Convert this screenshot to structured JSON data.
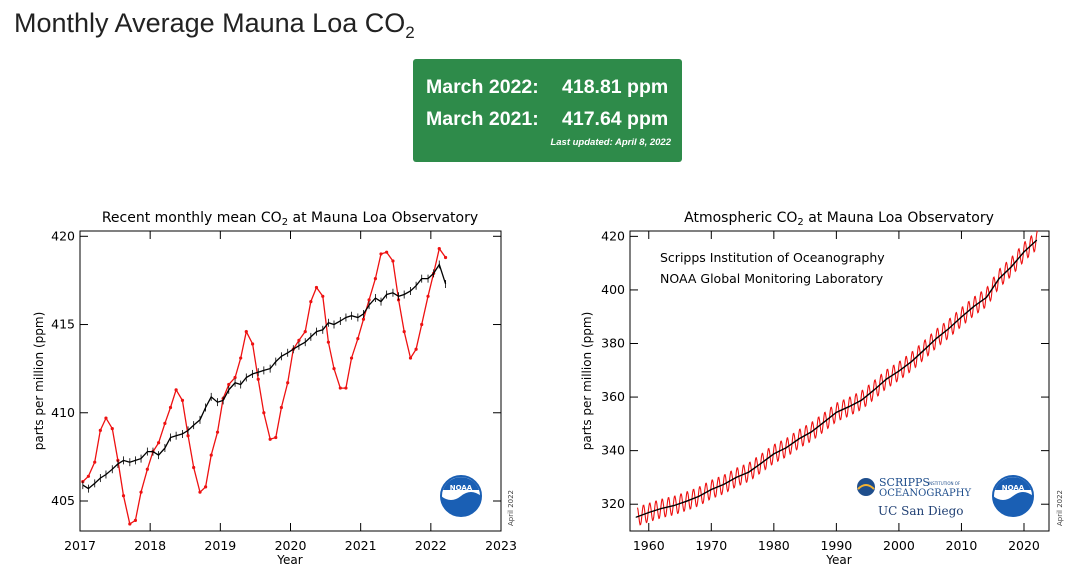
{
  "page": {
    "title": "Monthly Average Mauna Loa CO",
    "title_sub": "2"
  },
  "stats": {
    "row1_label": "March 2022:",
    "row1_value": "418.81 ppm",
    "row2_label": "March 2021:",
    "row2_value": "417.64 ppm",
    "updated": "Last updated: April 8, 2022"
  },
  "colors": {
    "stat_bg": "#2e8b4a",
    "monthly": "#ee1111",
    "trend": "#000000",
    "noaa_blue": "#1a5fb4"
  },
  "logos": {
    "noaa": "NOAA",
    "scripps_line1": "SCRIPPS",
    "scripps_line1_small": "INSTITUTION OF",
    "scripps_line2": "OCEANOGRAPHY",
    "ucsd": "UC San Diego",
    "date_stamp": "April 2022"
  },
  "chart_data": [
    {
      "type": "line",
      "title": "Recent monthly mean CO",
      "title_sub": "2",
      "title_suffix": " at Mauna Loa Observatory",
      "xlabel": "Year",
      "ylabel": "parts per million (ppm)",
      "xlim": [
        2017,
        2023
      ],
      "ylim": [
        403.3,
        420.3
      ],
      "xticks": [
        2017,
        2018,
        2019,
        2020,
        2021,
        2022,
        2023
      ],
      "yticks": [
        405,
        410,
        415,
        420
      ],
      "series": [
        {
          "name": "monthly mean",
          "color": "#ee1111",
          "x": [
            2017.04,
            2017.12,
            2017.21,
            2017.29,
            2017.37,
            2017.46,
            2017.54,
            2017.62,
            2017.71,
            2017.79,
            2017.87,
            2017.96,
            2018.04,
            2018.12,
            2018.21,
            2018.29,
            2018.37,
            2018.46,
            2018.54,
            2018.62,
            2018.71,
            2018.79,
            2018.87,
            2018.96,
            2019.04,
            2019.12,
            2019.21,
            2019.29,
            2019.37,
            2019.46,
            2019.54,
            2019.62,
            2019.71,
            2019.79,
            2019.87,
            2019.96,
            2020.04,
            2020.12,
            2020.21,
            2020.29,
            2020.37,
            2020.46,
            2020.54,
            2020.62,
            2020.71,
            2020.79,
            2020.87,
            2020.96,
            2021.04,
            2021.12,
            2021.21,
            2021.29,
            2021.37,
            2021.46,
            2021.54,
            2021.62,
            2021.71,
            2021.79,
            2021.87,
            2021.96,
            2022.04,
            2022.12,
            2022.21
          ],
          "values": [
            406.1,
            406.4,
            407.2,
            409.0,
            409.7,
            409.1,
            407.3,
            405.3,
            403.7,
            403.9,
            405.5,
            406.8,
            407.8,
            408.3,
            409.4,
            410.3,
            411.3,
            410.7,
            408.7,
            406.9,
            405.5,
            405.8,
            407.6,
            408.9,
            410.8,
            411.6,
            412.0,
            413.1,
            414.6,
            413.9,
            411.9,
            410.0,
            408.5,
            408.6,
            410.3,
            411.7,
            413.6,
            414.1,
            414.6,
            416.3,
            417.1,
            416.6,
            414.0,
            412.5,
            411.4,
            411.4,
            413.1,
            414.2,
            415.3,
            416.4,
            417.6,
            419.0,
            419.1,
            418.6,
            416.4,
            414.6,
            413.1,
            413.6,
            415.0,
            416.6,
            417.9,
            419.3,
            418.8
          ]
        },
        {
          "name": "deseasonalized trend",
          "color": "#000000",
          "x": [
            2017.04,
            2017.12,
            2017.21,
            2017.29,
            2017.37,
            2017.46,
            2017.54,
            2017.62,
            2017.71,
            2017.79,
            2017.87,
            2017.96,
            2018.04,
            2018.12,
            2018.21,
            2018.29,
            2018.37,
            2018.46,
            2018.54,
            2018.62,
            2018.71,
            2018.79,
            2018.87,
            2018.96,
            2019.04,
            2019.12,
            2019.21,
            2019.29,
            2019.37,
            2019.46,
            2019.54,
            2019.62,
            2019.71,
            2019.79,
            2019.87,
            2019.96,
            2020.04,
            2020.12,
            2020.21,
            2020.29,
            2020.37,
            2020.46,
            2020.54,
            2020.62,
            2020.71,
            2020.79,
            2020.87,
            2020.96,
            2021.04,
            2021.12,
            2021.21,
            2021.29,
            2021.37,
            2021.46,
            2021.54,
            2021.62,
            2021.71,
            2021.79,
            2021.87,
            2021.96,
            2022.04,
            2022.12,
            2022.21
          ],
          "values": [
            405.9,
            405.7,
            406.0,
            406.3,
            406.5,
            406.8,
            407.1,
            407.3,
            407.2,
            407.3,
            407.4,
            407.8,
            407.8,
            407.6,
            408.0,
            408.6,
            408.7,
            408.8,
            409.0,
            409.3,
            409.6,
            410.3,
            410.9,
            410.6,
            410.7,
            411.3,
            411.7,
            411.6,
            412.0,
            412.2,
            412.3,
            412.4,
            412.5,
            412.9,
            413.2,
            413.4,
            413.6,
            413.8,
            414.0,
            414.3,
            414.6,
            414.7,
            415.1,
            415.0,
            415.2,
            415.4,
            415.5,
            415.4,
            415.6,
            416.1,
            416.5,
            416.3,
            416.7,
            416.8,
            416.6,
            416.7,
            416.9,
            417.2,
            417.6,
            417.6,
            417.9,
            418.4,
            417.3
          ]
        }
      ]
    },
    {
      "type": "line",
      "title": "Atmospheric CO",
      "title_sub": "2",
      "title_suffix": " at Mauna Loa Observatory",
      "xlabel": "Year",
      "ylabel": "parts per million (ppm)",
      "xlim": [
        1957,
        2024
      ],
      "ylim": [
        310,
        422
      ],
      "xticks": [
        1960,
        1970,
        1980,
        1990,
        2000,
        2010,
        2020
      ],
      "yticks": [
        320,
        340,
        360,
        380,
        400,
        420
      ],
      "annotations": [
        "Scripps Institution of Oceanography",
        "NOAA Global Monitoring Laboratory"
      ],
      "series": [
        {
          "name": "trend",
          "color": "#000000",
          "x": [
            1958,
            1960,
            1962,
            1964,
            1966,
            1968,
            1970,
            1972,
            1974,
            1976,
            1978,
            1980,
            1982,
            1984,
            1986,
            1988,
            1990,
            1992,
            1994,
            1996,
            1998,
            2000,
            2002,
            2004,
            2006,
            2008,
            2010,
            2012,
            2014,
            2016,
            2018,
            2020,
            2022
          ],
          "values": [
            315.2,
            316.9,
            318.4,
            319.5,
            321.1,
            322.9,
            325.5,
            327.4,
            330.0,
            332.0,
            335.3,
            338.8,
            341.1,
            344.4,
            347.0,
            350.6,
            354.3,
            356.4,
            358.8,
            362.6,
            366.7,
            369.7,
            373.2,
            377.5,
            381.9,
            385.6,
            389.9,
            393.9,
            397.2,
            404.2,
            408.7,
            414.2,
            418.5
          ]
        }
      ],
      "seasonal_amplitude_ppm": 3.5
    }
  ]
}
